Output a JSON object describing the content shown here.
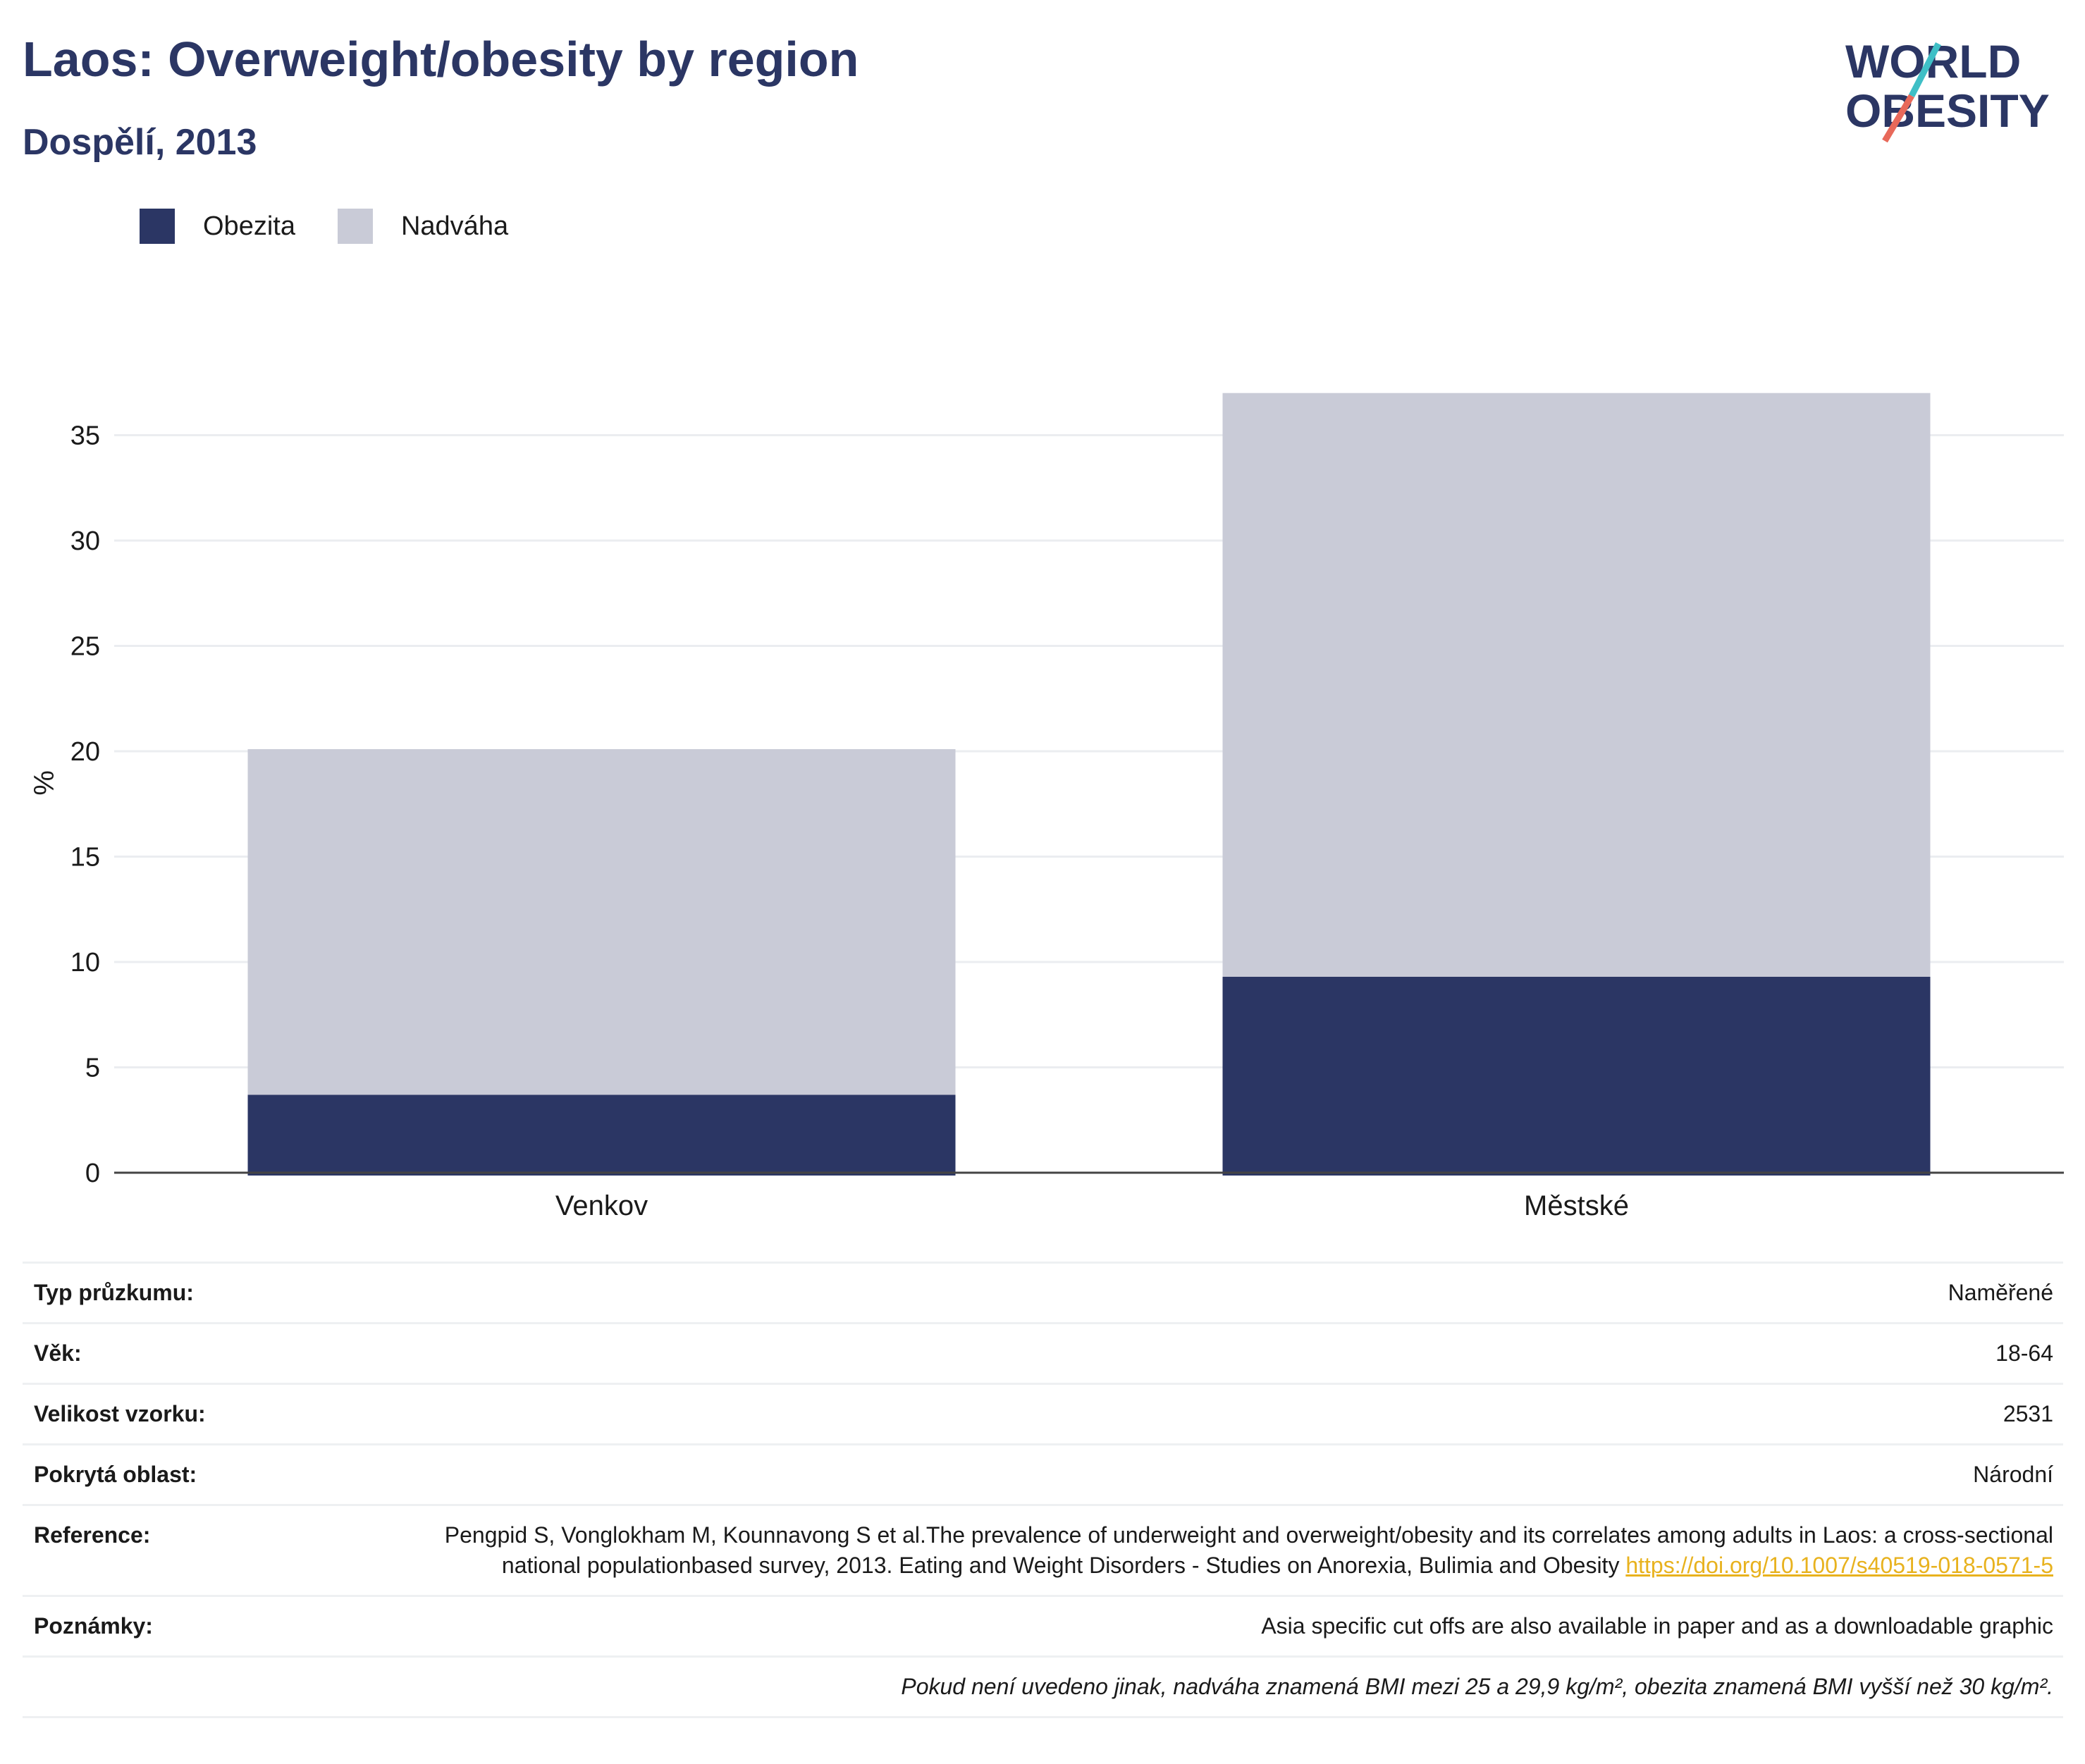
{
  "header": {
    "title": "Laos: Overweight/obesity by region",
    "subtitle": "Dospělí, 2013",
    "logo_line1": "WORLD",
    "logo_line2": "OBESITY"
  },
  "colors": {
    "obezita": "#2b3664",
    "nadvaha": "#c9cbd7",
    "title": "#2b3664",
    "link": "#e8b21e",
    "logo_teal": "#3fbfc6",
    "logo_red": "#e8695a"
  },
  "legend": [
    {
      "label": "Obezita",
      "color": "#2b3664"
    },
    {
      "label": "Nadváha",
      "color": "#c9cbd7"
    }
  ],
  "chart_data": {
    "type": "bar",
    "stacked": true,
    "categories": [
      "Venkov",
      "Městské"
    ],
    "series": [
      {
        "name": "Obezita",
        "values": [
          3.7,
          9.3
        ]
      },
      {
        "name": "Nadváha",
        "values": [
          16.4,
          27.7
        ]
      }
    ],
    "ylabel": "%",
    "ylim": [
      0,
      37
    ],
    "yticks": [
      0,
      5,
      10,
      15,
      20,
      25,
      30,
      35
    ],
    "grid": true,
    "legend_position": "top-left"
  },
  "info": [
    {
      "key": "Typ průzkumu:",
      "value": "Naměřené"
    },
    {
      "key": "Věk:",
      "value": "18-64"
    },
    {
      "key": "Velikost vzorku:",
      "value": "2531"
    },
    {
      "key": "Pokrytá oblast:",
      "value": "Národní"
    }
  ],
  "reference": {
    "key": "Reference:",
    "text": "Pengpid S, Vonglokham M, Kounnavong S et al.The prevalence of underweight and overweight/obesity and its correlates among adults in Laos: a cross-sectional national populationbased survey, 2013. Eating and Weight Disorders - Studies on Anorexia, Bulimia and Obesity",
    "link": "https://doi.org/10.1007/s40519-018-0571-5"
  },
  "notes": {
    "key": "Poznámky:",
    "value": "Asia specific cut offs are also available in paper and as a downloadable graphic"
  },
  "footnote": "Pokud není uvedeno jinak, nadváha znamená BMI mezi 25 a 29,9 kg/m², obezita znamená BMI vyšší než 30 kg/m²."
}
